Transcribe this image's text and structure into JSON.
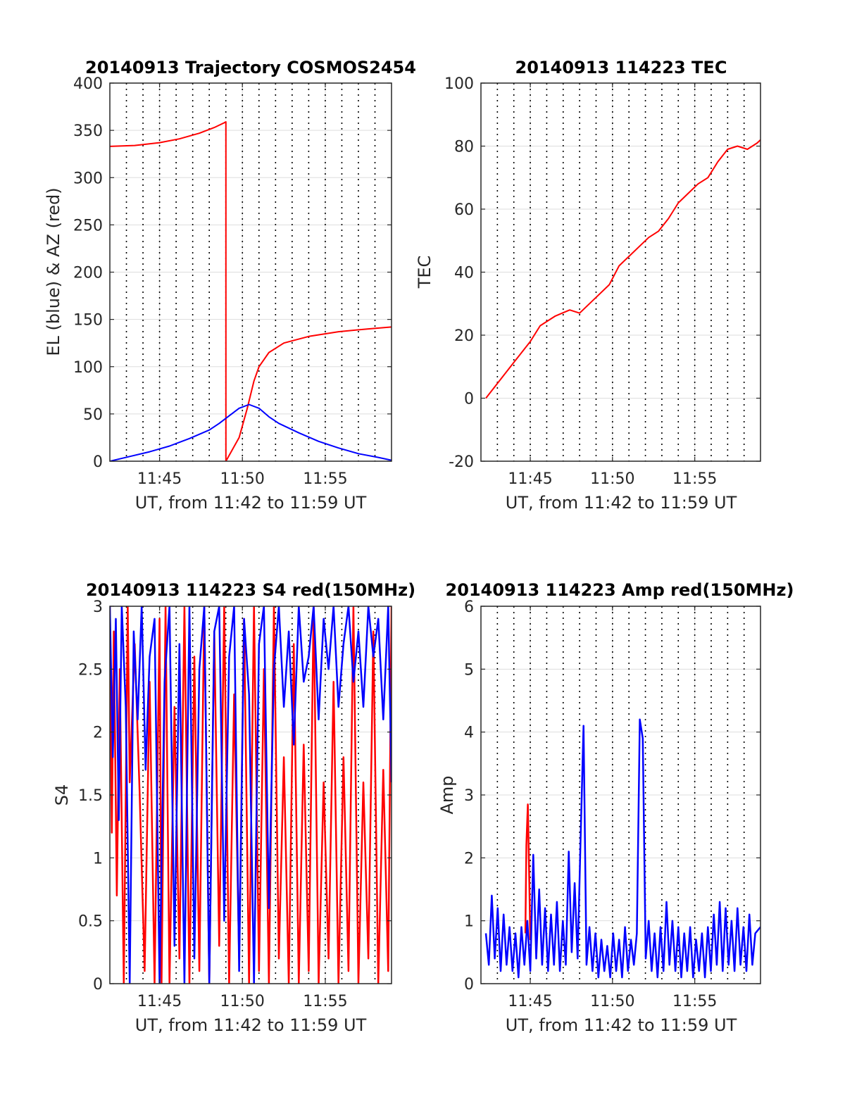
{
  "colors": {
    "red": "#ff0000",
    "blue": "#0000ff",
    "grid": "#dddddd",
    "axis": "#262626"
  },
  "chart_data": [
    {
      "id": "trajectory",
      "type": "line",
      "title": "20140913 Trajectory COSMOS2454",
      "xlabel": "UT, from 11:42 to 11:59 UT",
      "ylabel": "EL (blue) & AZ (red)",
      "xlim": [
        11.7,
        11.9833
      ],
      "ylim": [
        0,
        400
      ],
      "yticks": [
        0,
        50,
        100,
        150,
        200,
        250,
        300,
        350,
        400
      ],
      "yticklabels": [
        "0",
        "50",
        "100",
        "150",
        "200",
        "250",
        "300",
        "350",
        "400"
      ],
      "xticks": [
        11.75,
        11.8333,
        11.9167
      ],
      "xticklabels": [
        "11:45",
        "11:50",
        "11:55"
      ],
      "grid": true,
      "series": [
        {
          "color": "red",
          "x": [
            11.7,
            11.725,
            11.75,
            11.77,
            11.79,
            11.805,
            11.815,
            11.8167,
            11.8167,
            11.822,
            11.83,
            11.838,
            11.845,
            11.85,
            11.86,
            11.875,
            11.9,
            11.93,
            11.96,
            11.9833
          ],
          "values": [
            333,
            334,
            337,
            341,
            347,
            353,
            358,
            359,
            0,
            10,
            25,
            55,
            85,
            100,
            115,
            125,
            132,
            137,
            140,
            142
          ]
        },
        {
          "color": "blue",
          "x": [
            11.7,
            11.72,
            11.74,
            11.76,
            11.78,
            11.8,
            11.81,
            11.82,
            11.83,
            11.84,
            11.85,
            11.86,
            11.87,
            11.89,
            11.91,
            11.93,
            11.95,
            11.97,
            11.9833
          ],
          "values": [
            0,
            5,
            10,
            16,
            24,
            33,
            40,
            48,
            56,
            60,
            56,
            47,
            40,
            30,
            21,
            14,
            8,
            4,
            1
          ]
        }
      ]
    },
    {
      "id": "tec",
      "type": "line",
      "title": "20140913 114223 TEC",
      "xlabel": "UT, from 11:42 to 11:59 UT",
      "ylabel": "TEC",
      "xlim": [
        11.7,
        11.9833
      ],
      "ylim": [
        -20,
        100
      ],
      "yticks": [
        -20,
        0,
        20,
        40,
        60,
        80,
        100
      ],
      "yticklabels": [
        "-20",
        "0",
        "20",
        "40",
        "60",
        "80",
        "100"
      ],
      "xticks": [
        11.75,
        11.8333,
        11.9167
      ],
      "xticklabels": [
        "11:45",
        "11:50",
        "11:55"
      ],
      "grid": true,
      "series": [
        {
          "color": "red",
          "x": [
            11.705,
            11.72,
            11.735,
            11.75,
            11.76,
            11.775,
            11.79,
            11.8,
            11.81,
            11.82,
            11.83,
            11.84,
            11.85,
            11.86,
            11.87,
            11.88,
            11.89,
            11.9,
            11.91,
            11.92,
            11.93,
            11.94,
            11.95,
            11.96,
            11.97,
            11.98,
            11.9833
          ],
          "values": [
            0,
            6,
            12,
            18,
            23,
            26,
            28,
            27,
            30,
            33,
            36,
            42,
            45,
            48,
            51,
            53,
            57,
            62,
            65,
            68,
            70,
            75,
            79,
            80,
            79,
            81,
            82
          ]
        }
      ]
    },
    {
      "id": "s4",
      "type": "line",
      "title": "20140913 114223 S4 red(150MHz)",
      "xlabel": "UT, from 11:42 to 11:59 UT",
      "ylabel": "S4",
      "xlim": [
        11.7,
        11.9833
      ],
      "ylim": [
        0,
        3
      ],
      "yticks": [
        0,
        0.5,
        1,
        1.5,
        2,
        2.5,
        3
      ],
      "yticklabels": [
        "0",
        "0.5",
        "1",
        "1.5",
        "2",
        "2.5",
        "3"
      ],
      "xticks": [
        11.75,
        11.8333,
        11.9167
      ],
      "xticklabels": [
        "11:45",
        "11:50",
        "11:55"
      ],
      "grid": true,
      "series": [
        {
          "color": "red",
          "x": [
            11.7,
            11.702,
            11.704,
            11.707,
            11.71,
            11.714,
            11.718,
            11.72,
            11.725,
            11.73,
            11.735,
            11.74,
            11.745,
            11.75,
            11.752,
            11.756,
            11.76,
            11.765,
            11.77,
            11.775,
            11.78,
            11.785,
            11.79,
            11.795,
            11.8,
            11.805,
            11.81,
            11.815,
            11.82,
            11.825,
            11.83,
            11.835,
            11.84,
            11.845,
            11.85,
            11.855,
            11.86,
            11.865,
            11.87,
            11.875,
            11.88,
            11.885,
            11.89,
            11.895,
            11.9,
            11.905,
            11.91,
            11.915,
            11.92,
            11.925,
            11.93,
            11.935,
            11.94,
            11.945,
            11.95,
            11.955,
            11.96,
            11.965,
            11.97,
            11.975,
            11.98,
            11.9833
          ],
          "values": [
            3,
            1.2,
            2.8,
            0.7,
            2.5,
            0,
            3,
            1.6,
            2.7,
            1.5,
            0.1,
            2.4,
            0,
            2.9,
            0,
            3,
            0,
            2.2,
            0.2,
            3,
            0,
            2.6,
            0.1,
            3,
            0,
            2.8,
            0.3,
            3,
            0,
            2.3,
            0.2,
            2.9,
            0,
            3,
            0.1,
            2.5,
            0,
            3,
            0.2,
            1.8,
            0,
            2.7,
            0,
            1.9,
            0.1,
            3,
            0,
            1.6,
            0.2,
            2.4,
            0,
            1.8,
            0.1,
            3,
            0,
            1.6,
            0.2,
            2.8,
            0,
            1.7,
            0.1,
            3
          ]
        },
        {
          "color": "blue",
          "x": [
            11.7,
            11.703,
            11.706,
            11.709,
            11.712,
            11.716,
            11.72,
            11.724,
            11.728,
            11.732,
            11.736,
            11.74,
            11.745,
            11.75,
            11.755,
            11.76,
            11.765,
            11.77,
            11.775,
            11.78,
            11.785,
            11.79,
            11.795,
            11.8,
            11.805,
            11.81,
            11.815,
            11.82,
            11.825,
            11.83,
            11.835,
            11.84,
            11.845,
            11.85,
            11.855,
            11.86,
            11.865,
            11.87,
            11.875,
            11.88,
            11.885,
            11.89,
            11.895,
            11.9,
            11.905,
            11.91,
            11.915,
            11.92,
            11.925,
            11.93,
            11.935,
            11.94,
            11.945,
            11.95,
            11.955,
            11.96,
            11.965,
            11.97,
            11.975,
            11.98,
            11.9833
          ],
          "values": [
            3,
            1.8,
            2.9,
            1.3,
            3,
            2.2,
            0,
            2.8,
            2.1,
            3,
            1.7,
            2.6,
            2.9,
            0,
            2.4,
            3,
            0.3,
            2.7,
            0,
            3,
            0.2,
            2.5,
            3,
            0,
            2.8,
            3,
            0.5,
            2.6,
            3,
            0.1,
            2.9,
            2.3,
            0,
            2.7,
            3,
            0.6,
            2.5,
            3,
            2.2,
            2.8,
            1.9,
            3,
            2.4,
            2.6,
            3,
            2.1,
            2.9,
            2.5,
            3,
            2.2,
            2.7,
            3,
            2.4,
            2.8,
            2.2,
            3,
            2.6,
            2.9,
            2.1,
            3,
            1.6
          ]
        }
      ]
    },
    {
      "id": "amp",
      "type": "line",
      "title": "20140913 114223 Amp red(150MHz)",
      "xlabel": "UT, from 11:42 to 11:59 UT",
      "ylabel": "Amp",
      "xlim": [
        11.7,
        11.9833
      ],
      "ylim": [
        0,
        6
      ],
      "yticks": [
        0,
        1,
        2,
        3,
        4,
        5,
        6
      ],
      "yticklabels": [
        "0",
        "1",
        "2",
        "3",
        "4",
        "5",
        "6"
      ],
      "xticks": [
        11.75,
        11.8333,
        11.9167
      ],
      "xticklabels": [
        "11:45",
        "11:50",
        "11:55"
      ],
      "grid": true,
      "series": [
        {
          "color": "red",
          "x": [
            11.745,
            11.746,
            11.7475,
            11.749,
            11.75
          ],
          "values": [
            0.8,
            2.2,
            2.85,
            1.6,
            0.7
          ]
        },
        {
          "color": "blue",
          "x": [
            11.705,
            11.708,
            11.711,
            11.714,
            11.717,
            11.72,
            11.723,
            11.726,
            11.729,
            11.732,
            11.735,
            11.738,
            11.741,
            11.744,
            11.747,
            11.75,
            11.753,
            11.756,
            11.759,
            11.762,
            11.765,
            11.768,
            11.771,
            11.774,
            11.777,
            11.78,
            11.783,
            11.786,
            11.789,
            11.792,
            11.795,
            11.798,
            11.801,
            11.804,
            11.807,
            11.81,
            11.813,
            11.816,
            11.819,
            11.822,
            11.825,
            11.828,
            11.831,
            11.834,
            11.837,
            11.84,
            11.843,
            11.846,
            11.849,
            11.852,
            11.855,
            11.858,
            11.861,
            11.864,
            11.867,
            11.87,
            11.873,
            11.876,
            11.879,
            11.882,
            11.885,
            11.888,
            11.891,
            11.894,
            11.897,
            11.9,
            11.903,
            11.906,
            11.909,
            11.912,
            11.915,
            11.918,
            11.921,
            11.924,
            11.927,
            11.93,
            11.933,
            11.936,
            11.939,
            11.942,
            11.945,
            11.948,
            11.951,
            11.954,
            11.957,
            11.96,
            11.963,
            11.966,
            11.969,
            11.972,
            11.975,
            11.978,
            11.9833
          ],
          "values": [
            0.8,
            0.3,
            1.4,
            0.4,
            1.2,
            0.2,
            1.1,
            0.3,
            0.9,
            0.2,
            0.8,
            0.1,
            0.9,
            0.3,
            1.0,
            0.2,
            2.05,
            0.4,
            1.5,
            0.3,
            1.2,
            0.2,
            1.1,
            0.3,
            1.3,
            0.2,
            1.0,
            0.3,
            2.1,
            0.5,
            1.6,
            0.4,
            2.3,
            4.1,
            0.3,
            0.9,
            0.2,
            0.8,
            0.1,
            0.7,
            0.2,
            0.6,
            0.1,
            0.8,
            0.2,
            0.7,
            0.1,
            0.9,
            0.2,
            0.7,
            0.3,
            0.8,
            4.2,
            3.9,
            0.4,
            1.0,
            0.2,
            0.8,
            0.1,
            0.9,
            0.2,
            1.3,
            0.3,
            1.0,
            0.2,
            0.9,
            0.1,
            0.8,
            0.2,
            0.9,
            0.1,
            0.7,
            0.2,
            0.8,
            0.1,
            0.9,
            0.2,
            1.1,
            0.3,
            1.3,
            0.2,
            1.2,
            0.3,
            1.0,
            0.2,
            1.2,
            0.3,
            0.9,
            0.2,
            1.1,
            0.3,
            0.8,
            0.9
          ]
        }
      ]
    }
  ]
}
